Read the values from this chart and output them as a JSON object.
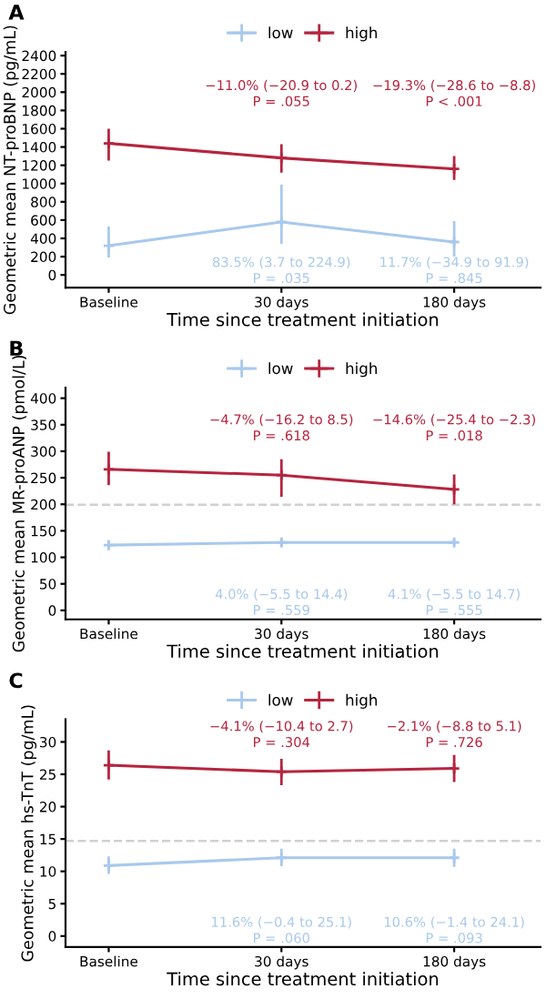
{
  "chart_data": [
    {
      "type": "line",
      "title": "A",
      "xlabel": "Time since treatment initiation",
      "ylabel": "Geometric mean NT-proBNP (pg/mL)",
      "categories": [
        "Baseline",
        "30 days",
        "180 days"
      ],
      "ylim": [
        -140,
        2440
      ],
      "yticks": [
        0,
        200,
        400,
        600,
        800,
        1000,
        1200,
        1400,
        1600,
        1800,
        2000,
        2200,
        2400
      ],
      "series": [
        {
          "name": "low",
          "color": "#a9c9ec",
          "values": [
            320,
            580,
            360
          ],
          "errors": [
            [
              190,
              530
            ],
            [
              340,
              990
            ],
            [
              200,
              590
            ]
          ]
        },
        {
          "name": "high",
          "color": "#b5253f",
          "values": [
            1440,
            1280,
            1160
          ],
          "errors": [
            [
              1250,
              1600
            ],
            [
              1120,
              1430
            ],
            [
              1040,
              1300
            ]
          ]
        }
      ],
      "annotations": [
        "−11.0% (−20.9 to 0.2)\nP = .055",
        "−19.3% (−28.6 to −8.8)\nP < .001",
        "83.5% (3.7 to 224.9)\nP = .035",
        "11.7% (−34.9 to 91.9)\nP = .845"
      ],
      "legend": "top",
      "marker": "cross",
      "line_style": "solid"
    },
    {
      "type": "line",
      "title": "B",
      "xlabel": "Time since treatment initiation",
      "ylabel": "Geometric mean MR-proANP (pmol/L)",
      "categories": [
        "Baseline",
        "30 days",
        "180 days"
      ],
      "ylim": [
        -17,
        420
      ],
      "yticks": [
        0,
        50,
        100,
        150,
        200,
        250,
        300,
        350,
        400
      ],
      "series": [
        {
          "name": "low",
          "color": "#a9c9ec",
          "values": [
            123,
            128,
            128
          ],
          "errors": [
            [
              117,
              131
            ],
            [
              121,
              137
            ],
            [
              122,
              135
            ]
          ]
        },
        {
          "name": "high",
          "color": "#b5253f",
          "values": [
            266,
            255,
            228
          ],
          "errors": [
            [
              236,
              299
            ],
            [
              214,
              285
            ],
            [
              200,
              256
            ]
          ]
        }
      ],
      "ref_lines": [
        {
          "axis": "y",
          "value": 199,
          "color": "#d0d0d0",
          "line_style": "dashed"
        }
      ],
      "annotations": [
        "−4.7% (−16.2 to 8.5)\nP = .618",
        "−14.6% (−25.4 to −2.3)\nP = .018",
        "4.0% (−5.5 to 14.4)\nP = .559",
        "4.1% (−5.5 to 14.7)\nP = .555"
      ],
      "legend": "top",
      "marker": "cross",
      "line_style": "solid"
    },
    {
      "type": "line",
      "title": "C",
      "xlabel": "Time since treatment initiation",
      "ylabel": "Geometric mean hs-TnT (pg/mL)",
      "categories": [
        "Baseline",
        "30 days",
        "180 days"
      ],
      "ylim": [
        -1.7,
        33.5
      ],
      "yticks": [
        0,
        5,
        10,
        15,
        20,
        25,
        30
      ],
      "series": [
        {
          "name": "low",
          "color": "#a9c9ec",
          "values": [
            10.9,
            12.1,
            12.1
          ],
          "errors": [
            [
              9.6,
              12.3
            ],
            [
              10.8,
              13.5
            ],
            [
              10.7,
              13.5
            ]
          ]
        },
        {
          "name": "high",
          "color": "#b5253f",
          "values": [
            26.4,
            25.4,
            25.9
          ],
          "errors": [
            [
              24.2,
              28.7
            ],
            [
              23.3,
              27.4
            ],
            [
              23.8,
              28.0
            ]
          ]
        }
      ],
      "ref_lines": [
        {
          "axis": "y",
          "value": 14.7,
          "color": "#d0d0d0",
          "line_style": "dashed"
        }
      ],
      "annotations": [
        "−4.1% (−10.4 to 2.7)\nP = .304",
        "−2.1% (−8.8 to 5.1)\nP = .726",
        "11.6% (−0.4 to 25.1)\nP = .060",
        "10.6% (−1.4 to 24.1)\nP = .093"
      ],
      "legend": "top",
      "marker": "cross",
      "line_style": "solid"
    }
  ]
}
